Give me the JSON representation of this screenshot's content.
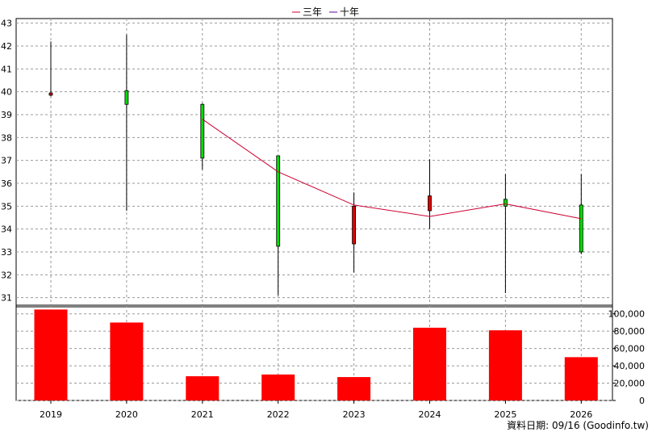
{
  "chart_data": {
    "type": "candlestick-with-volume",
    "legend": [
      {
        "name": "三年",
        "color": "#cc0033"
      },
      {
        "name": "十年",
        "color": "#660099"
      }
    ],
    "price_axis": {
      "ylim": [
        30.6,
        43.2
      ],
      "ticks": [
        31,
        32,
        33,
        34,
        35,
        36,
        37,
        38,
        39,
        40,
        41,
        42,
        43
      ],
      "side": "left",
      "grid": true
    },
    "volume_axis": {
      "ylim": [
        0,
        110000
      ],
      "ticks": [
        0,
        20000,
        40000,
        60000,
        80000,
        100000
      ],
      "tick_labels": [
        "0",
        "20,000",
        "40,000",
        "60,000",
        "80,000",
        "100,000"
      ],
      "side": "right",
      "grid": true
    },
    "categories": [
      "2019",
      "2020",
      "2021",
      "2022",
      "2023",
      "2024",
      "2025",
      "2026"
    ],
    "candles": [
      {
        "open": 39.95,
        "high": 42.2,
        "low": 39.8,
        "close": 39.85,
        "color": "red"
      },
      {
        "open": 39.45,
        "high": 42.5,
        "low": 34.8,
        "close": 40.05,
        "color": "green"
      },
      {
        "open": 37.1,
        "high": 39.5,
        "low": 36.6,
        "close": 39.45,
        "color": "green"
      },
      {
        "open": 33.25,
        "high": 37.2,
        "low": 31.1,
        "close": 37.2,
        "color": "green"
      },
      {
        "open": 35.0,
        "high": 35.6,
        "low": 32.1,
        "close": 33.35,
        "color": "red"
      },
      {
        "open": 35.45,
        "high": 37.05,
        "low": 34.0,
        "close": 34.8,
        "color": "red"
      },
      {
        "open": 35.0,
        "high": 36.4,
        "low": 31.2,
        "close": 35.3,
        "color": "green"
      },
      {
        "open": 33.0,
        "high": 36.4,
        "low": 32.9,
        "close": 35.05,
        "color": "green"
      }
    ],
    "ma_line": {
      "name": "三年",
      "color": "#cc0033",
      "points": [
        {
          "x": "2021",
          "y": 38.8
        },
        {
          "x": "2022",
          "y": 36.5
        },
        {
          "x": "2023",
          "y": 35.05
        },
        {
          "x": "2024",
          "y": 34.55
        },
        {
          "x": "2025",
          "y": 35.1
        },
        {
          "x": "2026",
          "y": 34.45
        }
      ]
    },
    "volume": [
      105000,
      90000,
      28000,
      30000,
      27000,
      84000,
      81000,
      50000
    ],
    "volume_color": "#ff0000"
  },
  "footer": "資料日期: 09/16  (Goodinfo.tw)"
}
